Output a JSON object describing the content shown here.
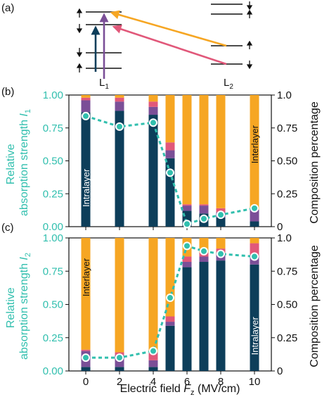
{
  "colors": {
    "intralayer": "#0d3e5a",
    "purple": "#7b4f97",
    "pink": "#e1587a",
    "interlayer": "#f6a623",
    "teal": "#31bfae",
    "arrow_dark": "#0d3e5a"
  },
  "panel_a": {
    "label": "(a)",
    "left_layer": "L",
    "left_sub": "1",
    "right_layer": "L",
    "right_sub": "2"
  },
  "chart_data": [
    {
      "type": "bar",
      "panel": "(b)",
      "x": [
        0,
        2,
        4,
        5,
        6,
        7,
        8,
        10
      ],
      "stack_order": [
        "intralayer",
        "purple",
        "pink",
        "interlayer"
      ],
      "composition_intralayer": [
        0.87,
        0.88,
        0.85,
        0.52,
        0.12,
        0.1,
        0.07,
        0.04
      ],
      "composition_purple": [
        0.09,
        0.07,
        0.06,
        0.06,
        0.04,
        0.06,
        0.04,
        0.09
      ],
      "composition_pink": [
        0.02,
        0.03,
        0.04,
        0.06,
        0.01,
        0.01,
        0.03,
        0.0
      ],
      "composition_interlayer": [
        0.02,
        0.02,
        0.05,
        0.36,
        0.83,
        0.83,
        0.86,
        0.87
      ],
      "relative_absorption": [
        0.84,
        0.76,
        0.79,
        0.41,
        0.02,
        0.06,
        0.09,
        0.14
      ],
      "ylabel_line1": "Relative",
      "ylabel_line2": "absorption strength",
      "ylabel_var": "I",
      "ylabel_sub": "1",
      "y2label": "Composition percentage",
      "ylim": [
        0,
        1.0
      ],
      "yticks_left": [
        "0.00",
        "0.25",
        "0.50",
        "0.75",
        "1.00"
      ],
      "yticks_right": [
        "0",
        "0.25",
        "0.50",
        "0.75",
        "1.0"
      ],
      "bar_annotations": [
        "Intralayer",
        "Interlayer"
      ]
    },
    {
      "type": "bar",
      "panel": "(c)",
      "x": [
        0,
        2,
        4,
        5,
        6,
        7,
        8,
        10
      ],
      "stack_order": [
        "intralayer",
        "purple",
        "pink",
        "interlayer"
      ],
      "composition_intralayer": [
        0.03,
        0.03,
        0.03,
        0.34,
        0.78,
        0.82,
        0.83,
        0.8
      ],
      "composition_purple": [
        0.12,
        0.09,
        0.05,
        0.03,
        0.04,
        0.04,
        0.04,
        0.06
      ],
      "composition_pink": [
        0.01,
        0.02,
        0.06,
        0.04,
        0.04,
        0.03,
        0.05,
        0.1
      ],
      "composition_interlayer": [
        0.84,
        0.86,
        0.86,
        0.59,
        0.14,
        0.11,
        0.08,
        0.04
      ],
      "relative_absorption": [
        0.1,
        0.1,
        0.15,
        0.55,
        0.94,
        0.9,
        0.88,
        0.86
      ],
      "ylabel_line1": "Relative",
      "ylabel_line2": "absorption strength",
      "ylabel_var": "I",
      "ylabel_sub": "2",
      "y2label": "Composition percentage",
      "ylim": [
        0,
        1.0
      ],
      "yticks_left": [
        "0.00",
        "0.25",
        "0.50",
        "0.75",
        "1.00"
      ],
      "yticks_right": [
        "0",
        "0.25",
        "0.50",
        "0.75",
        "1.0"
      ],
      "xticks": [
        "0",
        "2",
        "4",
        "6",
        "8",
        "10"
      ],
      "bar_annotations": [
        "Interlayer",
        "Intralayer"
      ],
      "xlabel_prefix": "Electric field ",
      "xlabel_var": "F",
      "xlabel_sub": "z",
      "xlabel_unit": " (MV/cm)"
    }
  ]
}
